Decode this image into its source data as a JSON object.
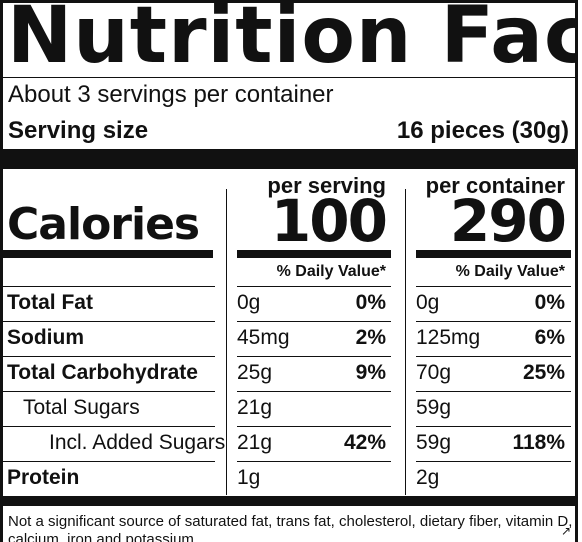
{
  "title": "Nutrition Facts",
  "servings_per_container": "About 3 servings per container",
  "serving_size_label": "Serving size",
  "serving_size_value": "16 pieces (30g)",
  "per_serving_label": "per serving",
  "per_container_label": "per container",
  "calories_label": "Calories",
  "calories_per_serving": "100",
  "calories_per_container": "290",
  "daily_value_label": "% Daily Value*",
  "nutrients": [
    {
      "name": "Total Fat",
      "bold": true,
      "indent": 0,
      "serving_amount": "0g",
      "serving_dv": "0%",
      "container_amount": "0g",
      "container_dv": "0%"
    },
    {
      "name": "Sodium",
      "bold": true,
      "indent": 0,
      "serving_amount": "45mg",
      "serving_dv": "2%",
      "container_amount": "125mg",
      "container_dv": "6%"
    },
    {
      "name": "Total Carbohydrate",
      "bold": true,
      "indent": 0,
      "serving_amount": "25g",
      "serving_dv": "9%",
      "container_amount": "70g",
      "container_dv": "25%"
    },
    {
      "name": "Total Sugars",
      "bold": false,
      "indent": 1,
      "serving_amount": "21g",
      "serving_dv": "",
      "container_amount": "59g",
      "container_dv": ""
    },
    {
      "name": "Incl. Added Sugars",
      "bold": false,
      "indent": 2,
      "serving_amount": "21g",
      "serving_dv": "42%",
      "container_amount": "59g",
      "container_dv": "118%"
    },
    {
      "name": "Protein",
      "bold": true,
      "indent": 0,
      "serving_amount": "1g",
      "serving_dv": "",
      "container_amount": "2g",
      "container_dv": ""
    }
  ],
  "footnote": "Not a significant source of saturated fat, trans fat, cholesterol, dietary fiber, vitamin D, calcium, iron and potassium.",
  "expand_icon": "expand-arrow-icon"
}
